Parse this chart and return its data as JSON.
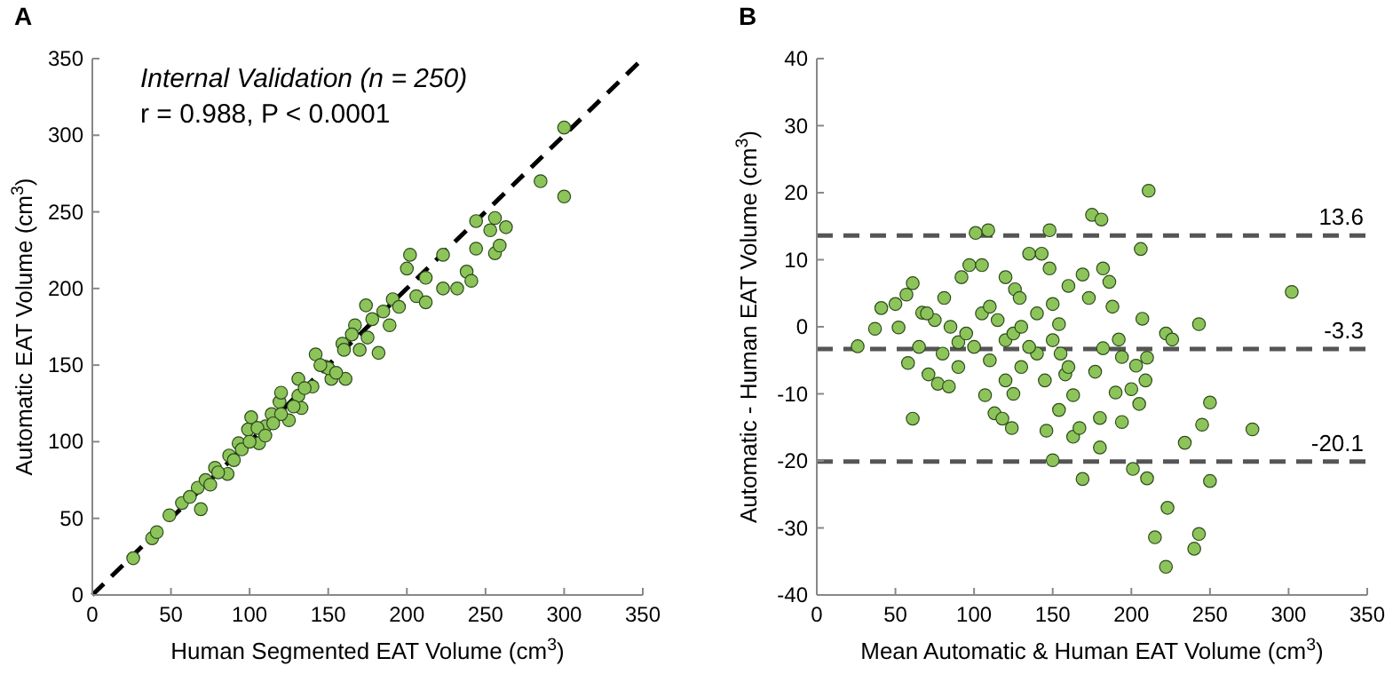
{
  "chart_data": [
    {
      "type": "scatter",
      "title": "A",
      "xlabel": "Human Segmented EAT Volume (cm$^{3}$)",
      "ylabel": "Automatic EAT Volume (cm$^{3}$)",
      "annotations": [
        "Internal Validation (n = 250)",
        "r = 0.988, P < 0.0001"
      ],
      "xlim": [
        0,
        350
      ],
      "ylim": [
        0,
        350
      ],
      "xticks": [
        0,
        50,
        100,
        150,
        200,
        250,
        300,
        350
      ],
      "yticks": [
        0,
        50,
        100,
        150,
        200,
        250,
        300,
        350
      ],
      "marker": "circle",
      "series": [
        {
          "type": "line",
          "color": "#000000",
          "line_style": "dashed",
          "marker": "none",
          "x": [
            0,
            350
          ],
          "values": [
            0,
            350
          ]
        },
        {
          "color": "#8cc45a",
          "x": [
            26,
            38,
            41,
            49,
            57,
            69,
            67,
            72,
            78,
            86,
            87,
            93,
            99,
            101,
            106,
            110,
            114,
            119,
            125,
            131,
            133,
            131,
            142,
            148,
            152,
            159,
            161,
            167,
            170,
            174,
            182,
            178,
            189,
            191,
            202,
            200,
            206,
            212,
            212,
            223,
            223,
            232,
            238,
            241,
            244,
            244,
            253,
            256,
            256,
            259,
            263,
            285,
            300,
            300,
            95,
            80,
            120,
            140,
            150,
            160,
            105,
            115,
            135,
            128,
            62,
            75,
            90,
            110,
            145,
            155,
            165,
            185,
            195,
            175,
            120,
            100
          ],
          "values": [
            24,
            37,
            41,
            52,
            60,
            56,
            70,
            75,
            83,
            79,
            91,
            99,
            108,
            116,
            99,
            110,
            118,
            126,
            114,
            130,
            122,
            141,
            157,
            149,
            141,
            164,
            141,
            176,
            160,
            189,
            158,
            180,
            176,
            193,
            222,
            213,
            195,
            207,
            191,
            222,
            200,
            200,
            211,
            205,
            226,
            244,
            238,
            246,
            223,
            228,
            240,
            270,
            305,
            260,
            95,
            80,
            118,
            136,
            148,
            160,
            109,
            112,
            135,
            123,
            64,
            72,
            88,
            104,
            150,
            145,
            170,
            185,
            188,
            168,
            132,
            100
          ]
        }
      ]
    },
    {
      "type": "scatter",
      "title": "B",
      "xlabel": "Mean Automatic & Human EAT Volume (cm$^{3}$)",
      "ylabel": "Automatic - Human EAT Volume (cm$^{3}$)",
      "xlim": [
        0,
        350
      ],
      "ylim": [
        -40,
        40
      ],
      "xticks": [
        0,
        50,
        100,
        150,
        200,
        250,
        300,
        350
      ],
      "yticks": [
        -40,
        -30,
        -20,
        -10,
        0,
        10,
        20,
        30,
        40
      ],
      "marker": "circle",
      "ref_lines": [
        {
          "axis": "y",
          "value": 13.6,
          "label": "13.6",
          "color": "#555555",
          "line_style": "dashed"
        },
        {
          "axis": "y",
          "value": -3.3,
          "label": "-3.3",
          "color": "#555555",
          "line_style": "dashed"
        },
        {
          "axis": "y",
          "value": -20.1,
          "label": "-20.1",
          "color": "#555555",
          "line_style": "dashed"
        }
      ],
      "series": [
        {
          "color": "#8cc45a",
          "x": [
            26,
            37,
            41,
            50,
            57,
            61,
            61,
            52,
            58,
            67,
            71,
            77,
            81,
            84,
            90,
            92,
            97,
            101,
            109,
            105,
            107,
            113,
            118,
            124,
            120,
            126,
            129,
            135,
            143,
            148,
            148,
            150,
            154,
            154,
            146,
            150,
            158,
            160,
            163,
            163,
            167,
            169,
            169,
            173,
            175,
            177,
            180,
            180,
            181,
            182,
            182,
            186,
            188,
            190,
            192,
            194,
            194,
            200,
            201,
            205,
            203,
            206,
            207,
            209,
            210,
            210,
            211,
            215,
            222,
            222,
            223,
            226,
            234,
            240,
            243,
            243,
            245,
            250,
            250,
            277,
            302,
            100,
            110,
            120,
            130,
            140,
            115,
            125,
            135,
            145,
            105,
            95,
            85,
            75,
            70,
            65,
            90,
            80,
            140,
            155,
            160,
            120,
            110,
            130,
            150,
            125
          ],
          "values": [
            -2.9,
            -0.3,
            2.8,
            3.4,
            4.8,
            6.5,
            -13.7,
            -0.1,
            -5.4,
            2.1,
            -7.1,
            -8.5,
            4.3,
            -8.9,
            -2.3,
            7.4,
            9.2,
            14.0,
            14.4,
            9.2,
            -10.2,
            -12.9,
            -13.7,
            -15.1,
            7.4,
            5.6,
            4.3,
            10.9,
            10.9,
            14.4,
            8.7,
            3.4,
            0.4,
            -12.4,
            -15.5,
            -19.9,
            -7.1,
            6.1,
            -10.2,
            -16.4,
            -15.1,
            -22.7,
            7.8,
            4.3,
            16.7,
            -6.7,
            -13.6,
            -18.0,
            16.0,
            8.7,
            -3.2,
            6.7,
            3.0,
            -9.8,
            -1.9,
            -14.2,
            -4.5,
            -9.3,
            -21.2,
            -11.5,
            -5.8,
            11.6,
            1.2,
            -8.0,
            -4.6,
            -22.6,
            20.3,
            -31.4,
            -1.0,
            -35.8,
            -27.0,
            -1.9,
            -17.3,
            -33.1,
            -30.9,
            0.4,
            -14.6,
            -11.3,
            -23.0,
            -15.3,
            5.2,
            -3,
            -5,
            -2,
            -6,
            -4,
            1,
            -1,
            -3,
            -8,
            2,
            -1,
            0,
            1,
            2,
            -3,
            -6,
            -4,
            2,
            -4,
            -6,
            -8,
            3,
            0,
            -2,
            -10
          ]
        }
      ]
    }
  ]
}
